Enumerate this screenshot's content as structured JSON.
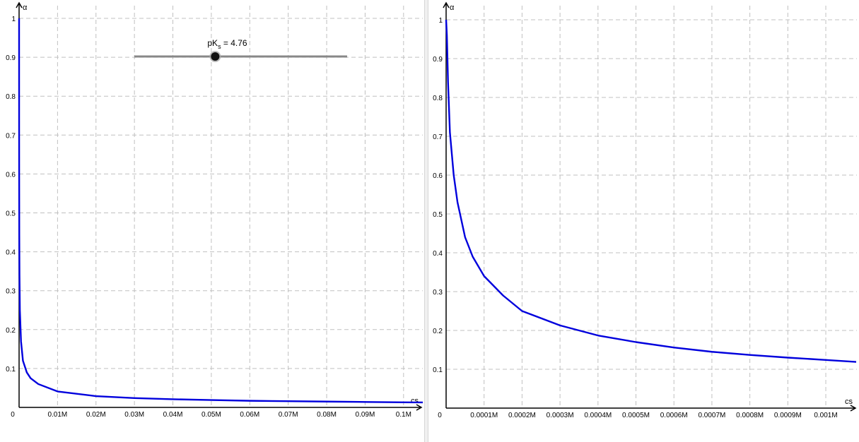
{
  "slider": {
    "label_main": "pK",
    "label_sub": "s",
    "label_rest": " = 4.76",
    "value": 4.76,
    "position_fraction": 0.38,
    "track_color": "#888888",
    "handle_color": "#111111"
  },
  "chart_data": [
    {
      "type": "line",
      "title": "",
      "xlabel": "cs",
      "ylabel": "α",
      "xlim": [
        0,
        0.105
      ],
      "ylim": [
        0,
        1.0
      ],
      "x_ticks": [
        0.01,
        0.02,
        0.03,
        0.04,
        0.05,
        0.06,
        0.07,
        0.08,
        0.09,
        0.1
      ],
      "x_tick_labels": [
        "0.01M",
        "0.02M",
        "0.03M",
        "0.04M",
        "0.05M",
        "0.06M",
        "0.07M",
        "0.08M",
        "0.09M",
        "0.1M"
      ],
      "y_ticks": [
        0.1,
        0.2,
        0.3,
        0.4,
        0.5,
        0.6,
        0.7,
        0.8,
        0.9,
        1
      ],
      "y_tick_labels": [
        "0.1",
        "0.2",
        "0.3",
        "0.4",
        "0.5",
        "0.6",
        "0.7",
        "0.8",
        "0.9",
        "1"
      ],
      "origin_label": "0",
      "grid": true,
      "series": [
        {
          "color": "#0000dd",
          "x": [
            1e-05,
            2e-05,
            5e-05,
            0.0001,
            0.0002,
            0.0005,
            0.001,
            0.002,
            0.003,
            0.005,
            0.01,
            0.02,
            0.03,
            0.04,
            0.05,
            0.06,
            0.07,
            0.08,
            0.09,
            0.1,
            0.105
          ],
          "y": [
            0.71,
            0.6,
            0.44,
            0.34,
            0.25,
            0.17,
            0.12,
            0.09,
            0.075,
            0.06,
            0.041,
            0.029,
            0.024,
            0.021,
            0.019,
            0.017,
            0.016,
            0.015,
            0.014,
            0.013,
            0.0128
          ]
        }
      ]
    },
    {
      "type": "line",
      "title": "",
      "xlabel": "cs",
      "ylabel": "α",
      "xlim": [
        0,
        0.00108
      ],
      "ylim": [
        0,
        1.0
      ],
      "x_ticks": [
        0.0001,
        0.0002,
        0.0003,
        0.0004,
        0.0005,
        0.0006,
        0.0007,
        0.0008,
        0.0009,
        0.001
      ],
      "x_tick_labels": [
        "0.0001M",
        "0.0002M",
        "0.0003M",
        "0.0004M",
        "0.0005M",
        "0.0006M",
        "0.0007M",
        "0.0008M",
        "0.0009M",
        "0.001M"
      ],
      "y_ticks": [
        0.1,
        0.2,
        0.3,
        0.4,
        0.5,
        0.6,
        0.7,
        0.8,
        0.9,
        1
      ],
      "y_tick_labels": [
        "0.1",
        "0.2",
        "0.3",
        "0.4",
        "0.5",
        "0.6",
        "0.7",
        "0.8",
        "0.9",
        "1"
      ],
      "origin_label": "0",
      "grid": true,
      "series": [
        {
          "color": "#0000dd",
          "x": [
            1e-06,
            2e-06,
            5e-06,
            1e-05,
            2e-05,
            3e-05,
            5e-05,
            7e-05,
            0.0001,
            0.00015,
            0.0002,
            0.0003,
            0.0004,
            0.0005,
            0.0006,
            0.0007,
            0.0008,
            0.0009,
            0.001,
            0.00108
          ],
          "y": [
            0.98,
            0.96,
            0.84,
            0.71,
            0.6,
            0.53,
            0.44,
            0.39,
            0.34,
            0.29,
            0.25,
            0.213,
            0.187,
            0.17,
            0.156,
            0.145,
            0.137,
            0.13,
            0.124,
            0.119
          ]
        }
      ]
    }
  ]
}
